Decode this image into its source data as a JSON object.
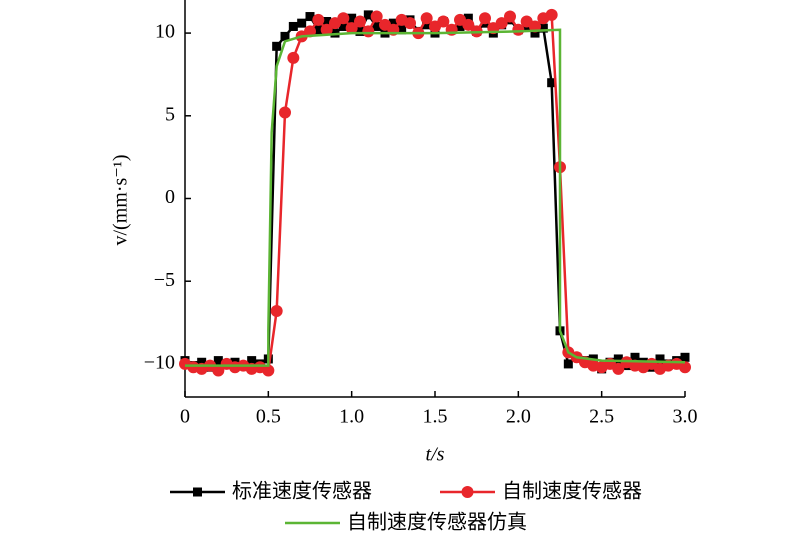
{
  "chart_data": {
    "type": "line",
    "x_label": "t/s",
    "y_label": "v/(mm·s⁻¹)",
    "xlim": [
      0,
      3.0
    ],
    "ylim": [
      -12,
      12
    ],
    "xticks": [
      0,
      0.5,
      {
        "value": 1.0,
        "label": "1.0"
      },
      1.5,
      {
        "value": 2.0,
        "label": "2.0"
      },
      2.5,
      {
        "value": 3.0,
        "label": "3.0"
      }
    ],
    "yticks": [
      {
        "value": -10,
        "label": "−10"
      },
      {
        "value": -5,
        "label": "−5"
      },
      0,
      5,
      10
    ],
    "series": [
      {
        "name": "标准速度传感器",
        "color": "#000000",
        "marker": "square",
        "x": [
          0,
          0.05,
          0.1,
          0.15,
          0.2,
          0.25,
          0.3,
          0.35,
          0.4,
          0.45,
          0.5,
          0.55,
          0.6,
          0.65,
          0.7,
          0.75,
          0.8,
          0.85,
          0.9,
          0.95,
          1.0,
          1.05,
          1.1,
          1.15,
          1.2,
          1.25,
          1.3,
          1.35,
          1.4,
          1.45,
          1.5,
          1.55,
          1.6,
          1.65,
          1.7,
          1.75,
          1.8,
          1.85,
          1.9,
          1.95,
          2.0,
          2.05,
          2.1,
          2.15,
          2.2,
          2.25,
          2.3,
          2.35,
          2.4,
          2.45,
          2.5,
          2.55,
          2.6,
          2.65,
          2.7,
          2.75,
          2.8,
          2.85,
          2.9,
          2.95,
          3.0
        ],
        "values": [
          -9.8,
          -10.1,
          -9.9,
          -10.2,
          -9.8,
          -10.0,
          -9.9,
          -10.1,
          -9.8,
          -10.0,
          -9.7,
          9.2,
          9.8,
          10.4,
          10.6,
          11.0,
          10.2,
          10.7,
          10.0,
          10.4,
          10.9,
          10.1,
          11.1,
          10.4,
          10.0,
          10.6,
          10.2,
          10.8,
          10.1,
          10.5,
          10.0,
          10.7,
          10.2,
          10.4,
          10.9,
          10.1,
          10.6,
          10.0,
          10.5,
          10.8,
          10.2,
          10.4,
          10.0,
          10.3,
          7.0,
          -8.0,
          -10.0,
          -9.6,
          -9.8,
          -9.7,
          -10.3,
          -9.9,
          -9.7,
          -10.1,
          -9.6,
          -9.9,
          -10.2,
          -9.7,
          -10.0,
          -9.8,
          -9.6
        ]
      },
      {
        "name": "自制速度传感器",
        "color": "#e8262b",
        "marker": "circle",
        "x": [
          0,
          0.05,
          0.1,
          0.15,
          0.2,
          0.25,
          0.3,
          0.35,
          0.4,
          0.45,
          0.5,
          0.55,
          0.6,
          0.65,
          0.7,
          0.75,
          0.8,
          0.85,
          0.9,
          0.95,
          1.0,
          1.05,
          1.1,
          1.15,
          1.2,
          1.25,
          1.3,
          1.35,
          1.4,
          1.45,
          1.5,
          1.55,
          1.6,
          1.65,
          1.7,
          1.75,
          1.8,
          1.85,
          1.9,
          1.95,
          2.0,
          2.05,
          2.1,
          2.15,
          2.2,
          2.25,
          2.3,
          2.35,
          2.4,
          2.45,
          2.5,
          2.55,
          2.6,
          2.65,
          2.7,
          2.75,
          2.8,
          2.85,
          2.9,
          2.95,
          3.0
        ],
        "values": [
          -10.0,
          -10.2,
          -10.3,
          -10.1,
          -10.4,
          -10.0,
          -10.2,
          -10.1,
          -10.3,
          -10.2,
          -10.4,
          -6.8,
          5.2,
          8.5,
          9.8,
          10.1,
          10.8,
          10.2,
          10.6,
          10.9,
          10.3,
          10.7,
          10.1,
          11.0,
          10.5,
          10.2,
          10.8,
          10.6,
          10.0,
          10.9,
          10.4,
          10.7,
          10.2,
          10.8,
          10.5,
          10.1,
          10.9,
          10.3,
          10.6,
          11.0,
          10.2,
          10.7,
          10.4,
          10.9,
          11.1,
          1.9,
          -9.3,
          -9.6,
          -9.9,
          -10.1,
          -10.2,
          -10.0,
          -10.3,
          -9.9,
          -10.1,
          -10.2,
          -10.0,
          -10.3,
          -10.1,
          -10.0,
          -10.2
        ]
      },
      {
        "name": "自制速度传感器仿真",
        "color": "#5bb534",
        "x": [
          0,
          0.5,
          0.5,
          0.52,
          0.55,
          0.6,
          0.7,
          1.0,
          1.5,
          2.0,
          2.25,
          2.25,
          2.3,
          2.35,
          2.5,
          3.0
        ],
        "values": [
          -10.1,
          -10.1,
          -8,
          4,
          8,
          9.5,
          9.8,
          10.0,
          10.0,
          10.1,
          10.2,
          -8,
          -9.3,
          -9.6,
          -9.8,
          -9.9
        ]
      }
    ]
  }
}
